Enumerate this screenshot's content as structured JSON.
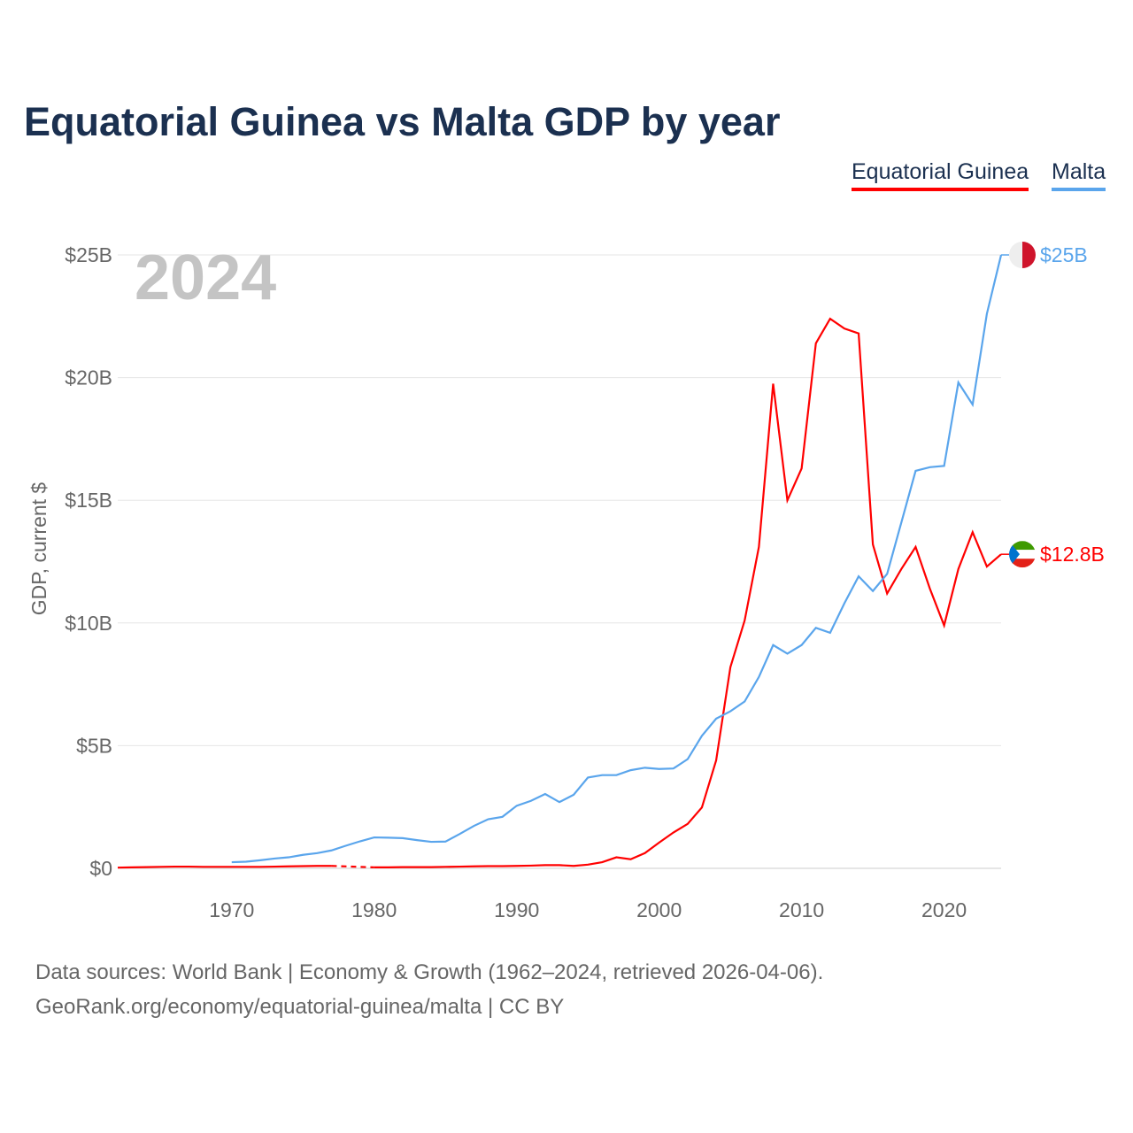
{
  "chart_data": {
    "type": "line",
    "title": "Equatorial Guinea vs Malta GDP by year",
    "ylabel": "GDP, current $",
    "xlabel": "",
    "ylim": [
      0,
      25
    ],
    "xlim": [
      1962,
      2024
    ],
    "year_label": "2024",
    "y_ticks": [
      {
        "v": 0,
        "label": "$0"
      },
      {
        "v": 5,
        "label": "$5B"
      },
      {
        "v": 10,
        "label": "$10B"
      },
      {
        "v": 15,
        "label": "$15B"
      },
      {
        "v": 20,
        "label": "$20B"
      },
      {
        "v": 25,
        "label": "$25B"
      }
    ],
    "x_ticks": [
      {
        "v": 1970,
        "label": "1970"
      },
      {
        "v": 1980,
        "label": "1980"
      },
      {
        "v": 1990,
        "label": "1990"
      },
      {
        "v": 2000,
        "label": "2000"
      },
      {
        "v": 2010,
        "label": "2010"
      },
      {
        "v": 2020,
        "label": "2020"
      }
    ],
    "legend_position": "top-right",
    "series": [
      {
        "name": "Equatorial Guinea",
        "color": "#ff0000",
        "end_label": "$12.8B",
        "dashed_gap": [
          1977,
          1980
        ],
        "x": [
          1962,
          1963,
          1964,
          1965,
          1966,
          1967,
          1968,
          1969,
          1970,
          1971,
          1972,
          1973,
          1974,
          1975,
          1976,
          1977,
          1980,
          1981,
          1982,
          1983,
          1984,
          1985,
          1986,
          1987,
          1988,
          1989,
          1990,
          1991,
          1992,
          1993,
          1994,
          1995,
          1996,
          1997,
          1998,
          1999,
          2000,
          2001,
          2002,
          2003,
          2004,
          2005,
          2006,
          2007,
          2008,
          2009,
          2010,
          2011,
          2012,
          2013,
          2014,
          2015,
          2016,
          2017,
          2018,
          2019,
          2020,
          2021,
          2022,
          2023,
          2024
        ],
        "y": [
          0.03,
          0.04,
          0.05,
          0.06,
          0.07,
          0.07,
          0.06,
          0.06,
          0.06,
          0.06,
          0.06,
          0.07,
          0.08,
          0.09,
          0.1,
          0.1,
          0.04,
          0.04,
          0.05,
          0.05,
          0.05,
          0.06,
          0.07,
          0.08,
          0.09,
          0.09,
          0.1,
          0.11,
          0.13,
          0.13,
          0.1,
          0.15,
          0.25,
          0.45,
          0.37,
          0.62,
          1.05,
          1.46,
          1.81,
          2.48,
          4.4,
          8.2,
          10.1,
          13.1,
          19.75,
          15.0,
          16.3,
          21.4,
          22.4,
          22.0,
          21.8,
          13.2,
          11.2,
          12.2,
          13.1,
          11.4,
          9.9,
          12.2,
          13.7,
          12.3,
          12.8
        ]
      },
      {
        "name": "Malta",
        "color": "#5aa5ec",
        "end_label": "$25B",
        "x": [
          1970,
          1971,
          1972,
          1973,
          1974,
          1975,
          1976,
          1977,
          1978,
          1979,
          1980,
          1981,
          1982,
          1983,
          1984,
          1985,
          1986,
          1987,
          1988,
          1989,
          1990,
          1991,
          1992,
          1993,
          1994,
          1995,
          1996,
          1997,
          1998,
          1999,
          2000,
          2001,
          2002,
          2003,
          2004,
          2005,
          2006,
          2007,
          2008,
          2009,
          2010,
          2011,
          2012,
          2013,
          2014,
          2015,
          2016,
          2017,
          2018,
          2019,
          2020,
          2021,
          2022,
          2023,
          2024
        ],
        "y": [
          0.25,
          0.27,
          0.33,
          0.4,
          0.45,
          0.55,
          0.62,
          0.73,
          0.92,
          1.1,
          1.26,
          1.25,
          1.23,
          1.15,
          1.08,
          1.09,
          1.4,
          1.73,
          2.0,
          2.1,
          2.55,
          2.75,
          3.03,
          2.7,
          3.0,
          3.7,
          3.8,
          3.8,
          4.0,
          4.1,
          4.05,
          4.07,
          4.45,
          5.4,
          6.1,
          6.4,
          6.8,
          7.8,
          9.1,
          8.75,
          9.1,
          9.8,
          9.6,
          10.8,
          11.9,
          11.3,
          12.0,
          14.1,
          16.2,
          16.35,
          16.4,
          19.8,
          18.9,
          22.6,
          25.0
        ]
      }
    ]
  },
  "legend": [
    "Equatorial Guinea",
    "Malta"
  ],
  "footer": {
    "line1": "Data sources: World Bank | Economy & Growth (1962–2024, retrieved 2026-04-06).",
    "line2": "GeoRank.org/economy/equatorial-guinea/malta | CC BY"
  }
}
